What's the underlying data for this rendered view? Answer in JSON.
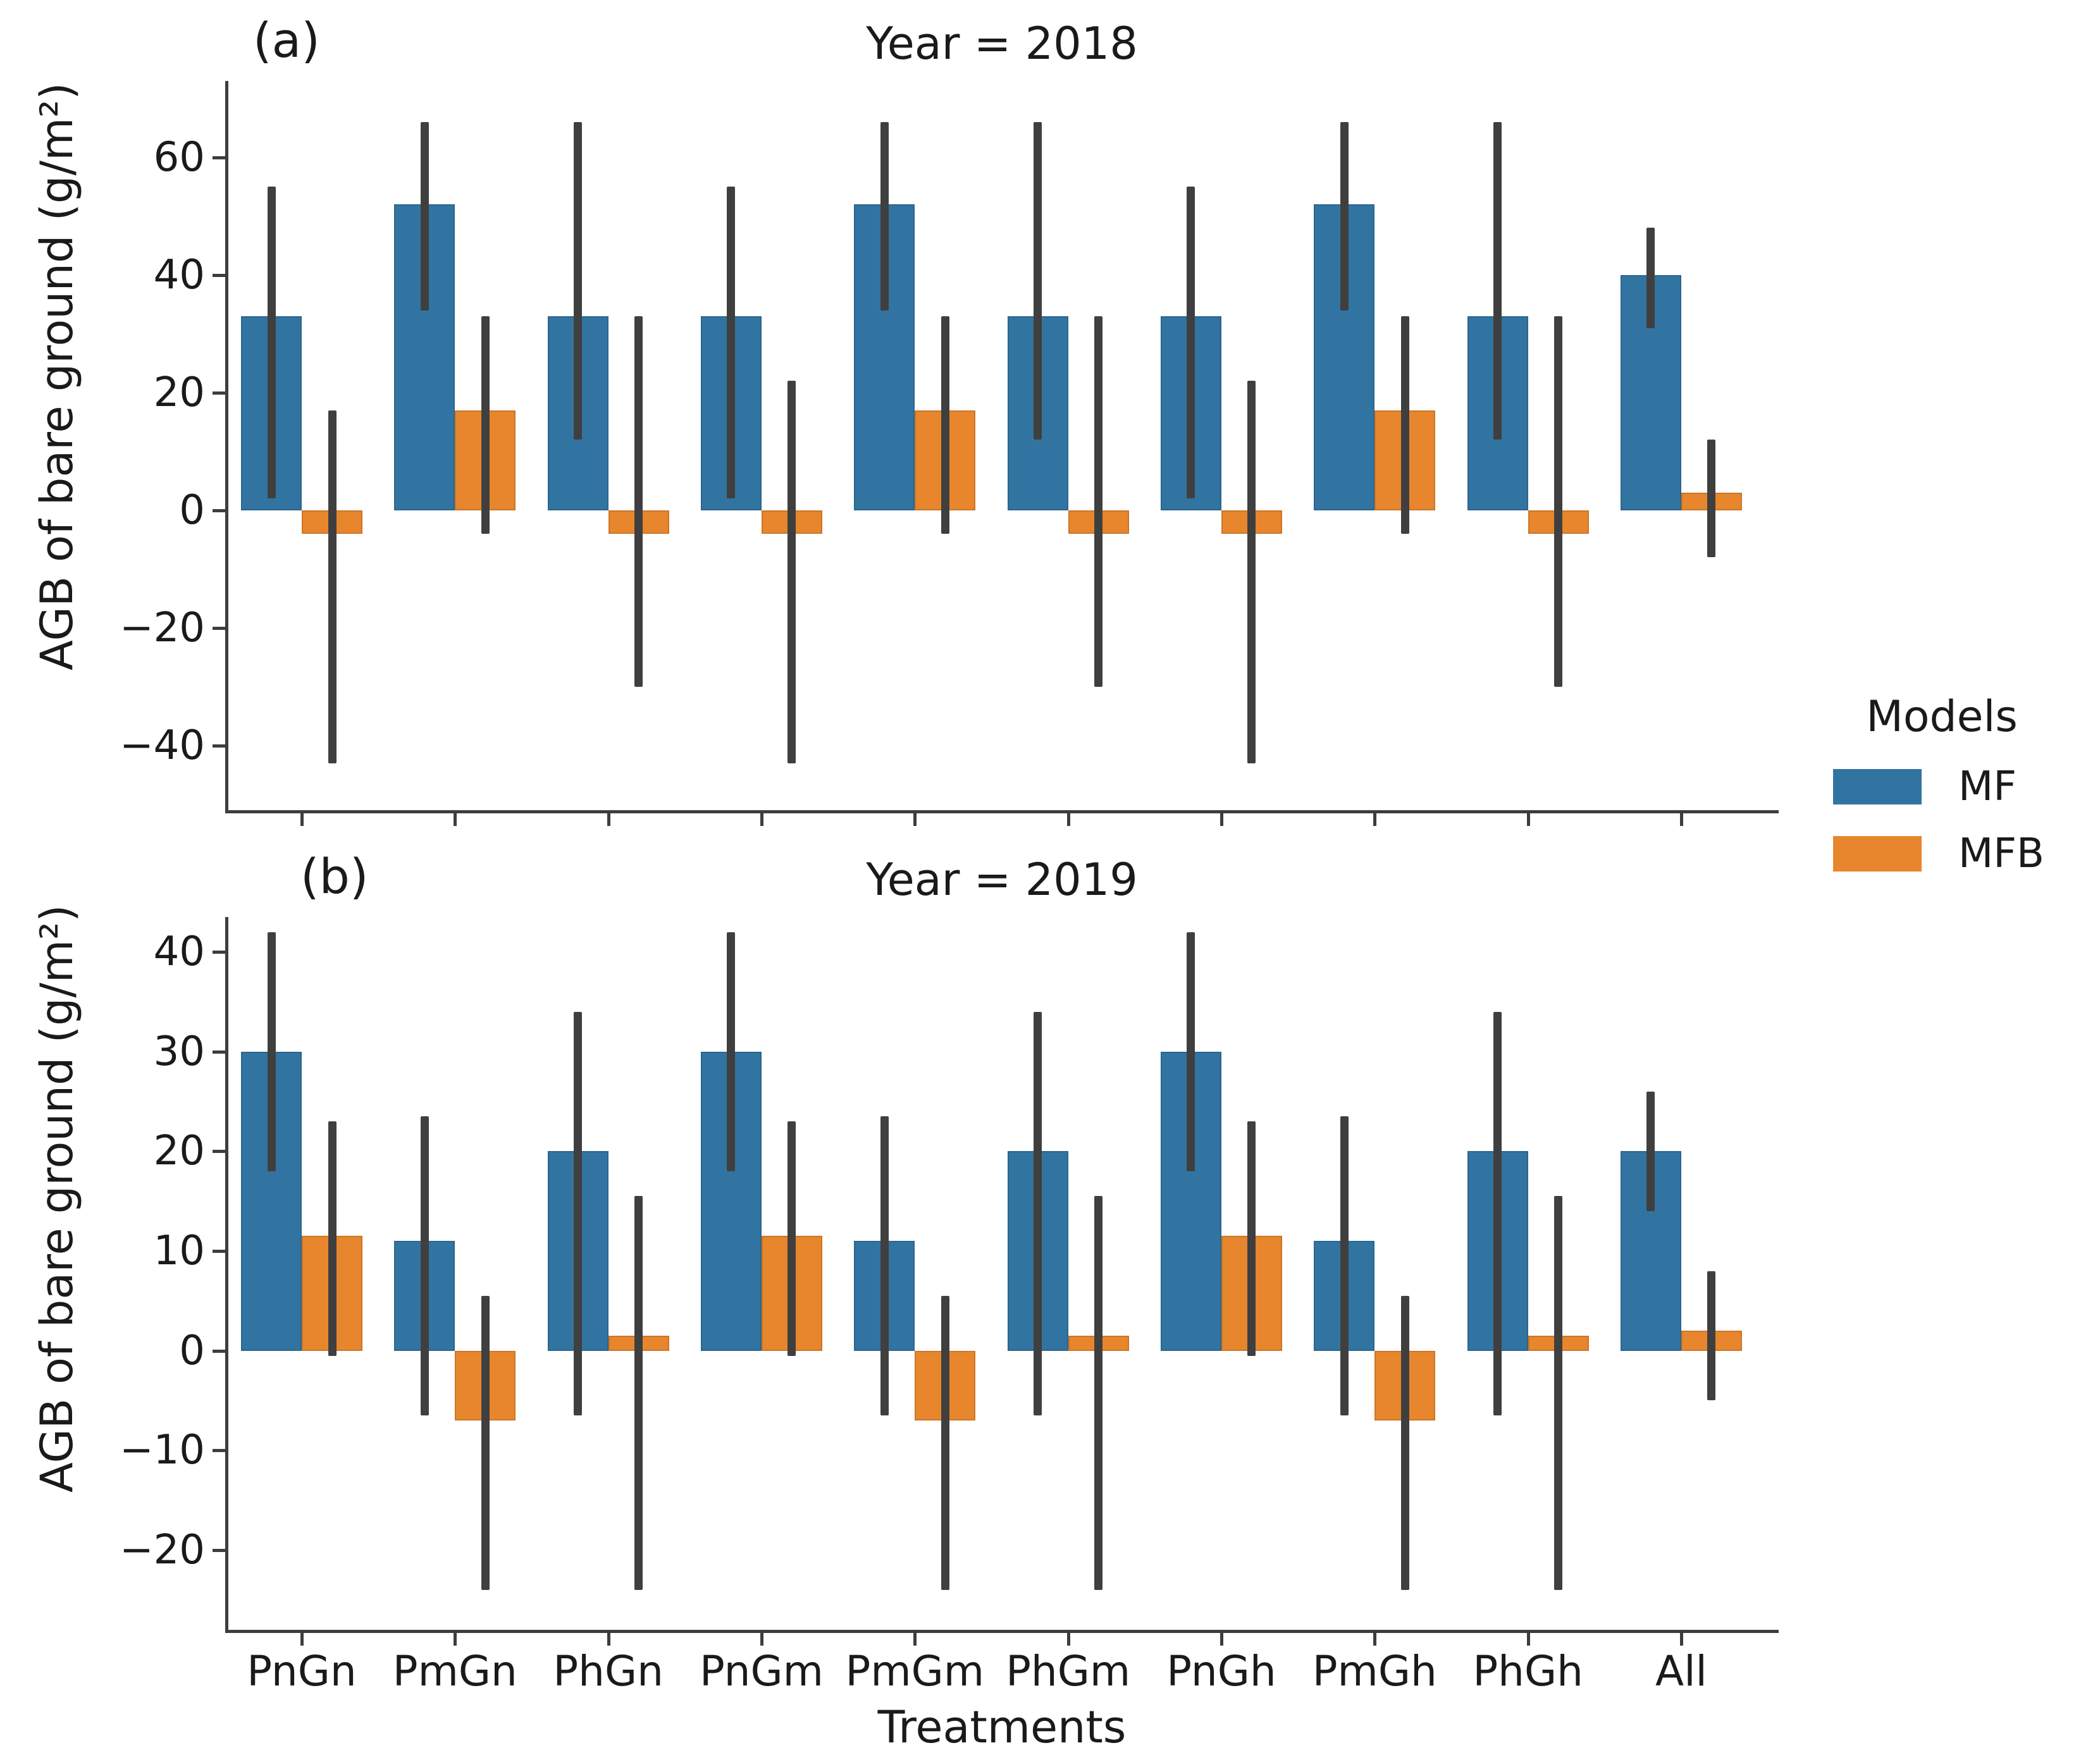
{
  "figure": {
    "xlabel": "Treatments",
    "legend": {
      "title": "Models",
      "entries": [
        {
          "label": "MF",
          "color": "#3274a1"
        },
        {
          "label": "MFB",
          "color": "#e8862d"
        }
      ]
    },
    "colors": {
      "mf_blue": "#3274a1",
      "mfb_orange": "#e8862d",
      "errorbar_gray": "#3f3f3f",
      "axis_gray": "#3d3d3d"
    }
  },
  "chart_data": [
    {
      "type": "bar",
      "panel_label": "(a)",
      "title": "Year = 2018",
      "ylabel": "AGB of bare ground (g/m²)",
      "xlabel": "Treatments",
      "categories": [
        "PnGn",
        "PmGn",
        "PhGn",
        "PnGm",
        "PmGm",
        "PhGm",
        "PnGh",
        "PmGh",
        "PhGh",
        "All"
      ],
      "yticks": [
        60,
        40,
        20,
        0,
        -20,
        -40
      ],
      "ylim": [
        -51,
        73
      ],
      "grid": false,
      "legend_position": "right-outside",
      "series": [
        {
          "name": "MF",
          "color": "#3274a1",
          "values": [
            33,
            52,
            33,
            33,
            52,
            33,
            33,
            52,
            33,
            40
          ],
          "err_low": [
            2,
            34,
            12,
            2,
            34,
            12,
            2,
            34,
            12,
            31
          ],
          "err_high": [
            55,
            66,
            66,
            55,
            66,
            66,
            55,
            66,
            66,
            48
          ]
        },
        {
          "name": "MFB",
          "color": "#e8862d",
          "values": [
            -4,
            17,
            -4,
            -4,
            17,
            -4,
            -4,
            17,
            -4,
            3
          ],
          "err_low": [
            -43,
            -4,
            -30,
            -43,
            -4,
            -30,
            -43,
            -4,
            -30,
            -8
          ],
          "err_high": [
            17,
            33,
            33,
            22,
            33,
            33,
            22,
            33,
            33,
            12
          ]
        }
      ]
    },
    {
      "type": "bar",
      "panel_label": "(b)",
      "title": "Year = 2019",
      "ylabel": "AGB of bare ground (g/m²)",
      "xlabel": "Treatments",
      "categories": [
        "PnGn",
        "PmGn",
        "PhGn",
        "PnGm",
        "PmGm",
        "PhGm",
        "PnGh",
        "PmGh",
        "PhGh",
        "All"
      ],
      "yticks": [
        40,
        30,
        20,
        10,
        0,
        -10,
        -20
      ],
      "ylim": [
        -28,
        43.5
      ],
      "grid": false,
      "legend_position": "right-outside",
      "series": [
        {
          "name": "MF",
          "color": "#3274a1",
          "values": [
            30,
            11,
            20,
            30,
            11,
            20,
            30,
            11,
            20,
            20
          ],
          "err_low": [
            18,
            -6.5,
            -6.5,
            18,
            -6.5,
            -6.5,
            18,
            -6.5,
            -6.5,
            14
          ],
          "err_high": [
            42,
            23.5,
            34,
            42,
            23.5,
            34,
            42,
            23.5,
            34,
            26
          ]
        },
        {
          "name": "MFB",
          "color": "#e8862d",
          "values": [
            11.5,
            -7,
            1.5,
            11.5,
            -7,
            1.5,
            11.5,
            -7,
            1.5,
            2
          ],
          "err_low": [
            -0.5,
            -24,
            -24,
            -0.5,
            -24,
            -24,
            -0.5,
            -24,
            -24,
            -5
          ],
          "err_high": [
            23,
            5.5,
            15.5,
            23,
            5.5,
            15.5,
            23,
            5.5,
            15.5,
            8
          ]
        }
      ]
    }
  ]
}
